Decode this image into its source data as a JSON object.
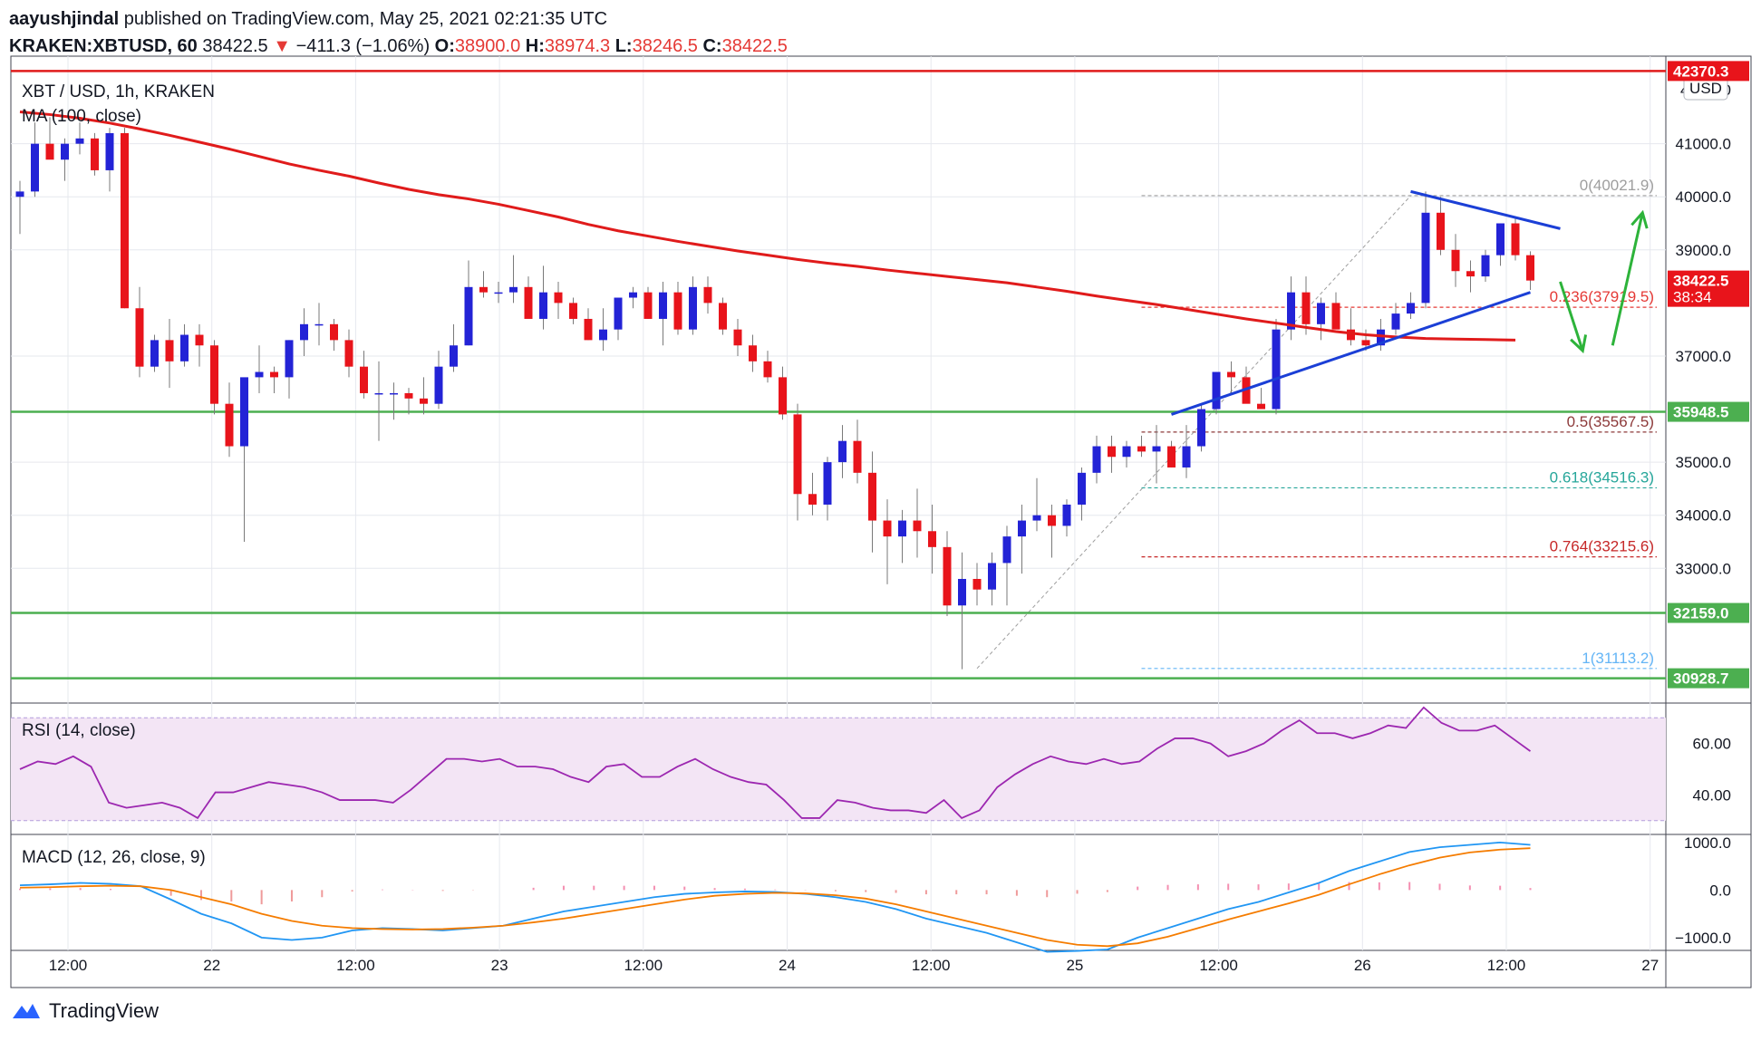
{
  "header": {
    "author": "aayushjindal",
    "published_text": "published on TradingView.com, May 25, 2021 02:21:35 UTC",
    "symbol": "KRAKEN:XBTUSD, 60",
    "last": "38422.5",
    "change_arrow": "▼",
    "change": "−411.3 (−1.06%)",
    "o_label": "O:",
    "o": "38900.0",
    "h_label": "H:",
    "h": "38974.3",
    "l_label": "L:",
    "l": "38246.5",
    "c_label": "C:",
    "c": "38422.5"
  },
  "footer": {
    "brand": "TradingView"
  },
  "colors": {
    "up": "#2323d6",
    "down": "#e8141b",
    "ma": "#e01b1b",
    "support": "#4caf50",
    "trend": "#1b3fd6",
    "arrow": "#2db33a",
    "rsi": "#9c27b0",
    "macd": "#2196f3",
    "signal": "#f57c00"
  },
  "chart_data": [
    {
      "type": "candlestick",
      "title": "XBT / USD, 1h, KRAKEN",
      "currency": "USD",
      "ylim": [
        30700,
        42650
      ],
      "x_ticks": [
        "12:00",
        "22",
        "12:00",
        "23",
        "12:00",
        "24",
        "12:00",
        "25",
        "12:00",
        "26",
        "12:00",
        "27"
      ],
      "y_ticks": [
        "41000.0",
        "40000.0",
        "39000.0",
        "37000.0",
        "35000.0",
        "34000.0",
        "33000.0"
      ],
      "y_tick_values": [
        41000,
        40000,
        39000,
        37000,
        35000,
        34000,
        33000
      ],
      "y_axis_partial": [
        "4",
        "0"
      ],
      "price_labels": [
        {
          "text": "42370.3",
          "value": 42370.3,
          "style": "red"
        },
        {
          "text": "38422.5",
          "sub": "38:34",
          "value": 38422.5,
          "style": "red"
        },
        {
          "text": "35948.5",
          "value": 35948.5,
          "style": "green"
        },
        {
          "text": "32159.0",
          "value": 32159.0,
          "style": "green"
        },
        {
          "text": "30928.7",
          "value": 30928.7,
          "style": "green"
        }
      ],
      "horizontal_lines": [
        {
          "value": 42370.3,
          "color": "red"
        },
        {
          "value": 35948.5,
          "color": "green"
        },
        {
          "value": 32159.0,
          "color": "green"
        },
        {
          "value": 30928.7,
          "color": "green"
        }
      ],
      "fib_levels": [
        {
          "label": "0(40021.9)",
          "value": 40021.9,
          "color": "#9e9e9e"
        },
        {
          "label": "0.236(37919.5)",
          "value": 37919.5,
          "color": "#e53935"
        },
        {
          "label": "0.5(35567.5)",
          "value": 35567.5,
          "color": "#8d3a3a"
        },
        {
          "label": "0.618(34516.3)",
          "value": 34516.3,
          "color": "#26a69a"
        },
        {
          "label": "0.764(33215.6)",
          "value": 33215.6,
          "color": "#c62828"
        },
        {
          "label": "1(31113.2)",
          "value": 31113.2,
          "color": "#64b5f6"
        }
      ],
      "indicator_label": "MA (100, close)",
      "candles_ohlc": [
        [
          40000,
          40300,
          39300,
          40100
        ],
        [
          40100,
          41400,
          40000,
          41000
        ],
        [
          41000,
          41500,
          40800,
          40700
        ],
        [
          40700,
          41100,
          40300,
          41000
        ],
        [
          41000,
          41400,
          40800,
          41100
        ],
        [
          41100,
          41200,
          40400,
          40500
        ],
        [
          40500,
          41300,
          40100,
          41200
        ],
        [
          41200,
          41300,
          37900,
          37900
        ],
        [
          37900,
          38300,
          36600,
          36800
        ],
        [
          36800,
          37400,
          36700,
          37300
        ],
        [
          37300,
          37700,
          36400,
          36900
        ],
        [
          36900,
          37600,
          36800,
          37400
        ],
        [
          37400,
          37600,
          36800,
          37200
        ],
        [
          37200,
          37300,
          35900,
          36100
        ],
        [
          36100,
          36500,
          35100,
          35300
        ],
        [
          35300,
          36400,
          33500,
          36600
        ],
        [
          36600,
          37200,
          36300,
          36700
        ],
        [
          36700,
          36800,
          36300,
          36600
        ],
        [
          36600,
          37300,
          36200,
          37300
        ],
        [
          37300,
          37900,
          37000,
          37600
        ],
        [
          37600,
          38000,
          37200,
          37600
        ],
        [
          37600,
          37700,
          37100,
          37300
        ],
        [
          37300,
          37500,
          36600,
          36800
        ],
        [
          36800,
          37100,
          36200,
          36300
        ],
        [
          36300,
          36900,
          35400,
          36300
        ],
        [
          36300,
          36500,
          35800,
          36300
        ],
        [
          36300,
          36400,
          35900,
          36200
        ],
        [
          36200,
          36600,
          35900,
          36100
        ],
        [
          36100,
          37100,
          36000,
          36800
        ],
        [
          36800,
          37600,
          36700,
          37200
        ],
        [
          37200,
          38800,
          37200,
          38300
        ],
        [
          38300,
          38600,
          38100,
          38200
        ],
        [
          38200,
          38400,
          38000,
          38200
        ],
        [
          38200,
          38900,
          38000,
          38300
        ],
        [
          38300,
          38500,
          37800,
          37700
        ],
        [
          37700,
          38700,
          37500,
          38200
        ],
        [
          38200,
          38400,
          37700,
          38000
        ],
        [
          38000,
          38100,
          37600,
          37700
        ],
        [
          37700,
          37900,
          37300,
          37300
        ],
        [
          37300,
          37900,
          37100,
          37500
        ],
        [
          37500,
          38100,
          37300,
          38100
        ],
        [
          38100,
          38300,
          37900,
          38200
        ],
        [
          38200,
          38300,
          37700,
          37700
        ],
        [
          37700,
          38400,
          37200,
          38200
        ],
        [
          38200,
          38400,
          37400,
          37500
        ],
        [
          37500,
          38500,
          37400,
          38300
        ],
        [
          38300,
          38500,
          37800,
          38000
        ],
        [
          38000,
          38100,
          37400,
          37500
        ],
        [
          37500,
          37700,
          37000,
          37200
        ],
        [
          37200,
          37400,
          36700,
          36900
        ],
        [
          36900,
          37100,
          36500,
          36600
        ],
        [
          36600,
          36800,
          35800,
          35900
        ],
        [
          35900,
          36100,
          33900,
          34400
        ],
        [
          34400,
          34800,
          34000,
          34200
        ],
        [
          34200,
          35100,
          33900,
          35000
        ],
        [
          35000,
          35700,
          34700,
          35400
        ],
        [
          35400,
          35800,
          34600,
          34800
        ],
        [
          34800,
          35200,
          33300,
          33900
        ],
        [
          33900,
          34300,
          32700,
          33600
        ],
        [
          33600,
          34100,
          33100,
          33900
        ],
        [
          33900,
          34500,
          33200,
          33700
        ],
        [
          33700,
          34200,
          32900,
          33400
        ],
        [
          33400,
          33700,
          32100,
          32300
        ],
        [
          32300,
          33300,
          31100,
          32800
        ],
        [
          32800,
          33100,
          32300,
          32600
        ],
        [
          32600,
          33300,
          32300,
          33100
        ],
        [
          33100,
          33800,
          32300,
          33600
        ],
        [
          33600,
          34200,
          32900,
          33900
        ],
        [
          33900,
          34700,
          33700,
          34000
        ],
        [
          34000,
          34200,
          33200,
          33800
        ],
        [
          33800,
          34300,
          33600,
          34200
        ],
        [
          34200,
          34900,
          33900,
          34800
        ],
        [
          34800,
          35500,
          34600,
          35300
        ],
        [
          35300,
          35500,
          34800,
          35100
        ],
        [
          35100,
          35400,
          34900,
          35300
        ],
        [
          35300,
          35500,
          35100,
          35200
        ],
        [
          35200,
          35700,
          34600,
          35300
        ],
        [
          35300,
          35400,
          34900,
          34900
        ],
        [
          34900,
          35700,
          34700,
          35300
        ],
        [
          35300,
          36100,
          35200,
          36000
        ],
        [
          36000,
          36700,
          35900,
          36700
        ],
        [
          36700,
          36900,
          36300,
          36600
        ],
        [
          36600,
          36800,
          36200,
          36100
        ],
        [
          36100,
          36400,
          36000,
          36000
        ],
        [
          36000,
          37700,
          35900,
          37500
        ],
        [
          37500,
          38500,
          37300,
          38200
        ],
        [
          38200,
          38500,
          37400,
          37600
        ],
        [
          37600,
          38100,
          37300,
          38000
        ],
        [
          38000,
          38200,
          37600,
          37500
        ],
        [
          37500,
          37900,
          37200,
          37300
        ],
        [
          37300,
          37500,
          37100,
          37200
        ],
        [
          37200,
          37700,
          37100,
          37500
        ],
        [
          37500,
          38000,
          37400,
          37800
        ],
        [
          37800,
          38200,
          37700,
          38000
        ],
        [
          38000,
          40100,
          37900,
          39700
        ],
        [
          39700,
          40000,
          38900,
          39000
        ],
        [
          39000,
          39300,
          38300,
          38600
        ],
        [
          38600,
          38800,
          38200,
          38500
        ],
        [
          38500,
          39000,
          38400,
          38900
        ],
        [
          38900,
          39500,
          38700,
          39500
        ],
        [
          39500,
          39600,
          38800,
          38900
        ],
        [
          38900,
          38974,
          38246,
          38422.5
        ]
      ],
      "ma100": [
        41600,
        41550,
        41480,
        41390,
        41280,
        41160,
        41030,
        40900,
        40760,
        40620,
        40500,
        40390,
        40260,
        40140,
        40040,
        39960,
        39860,
        39740,
        39620,
        39480,
        39360,
        39260,
        39160,
        39070,
        38980,
        38900,
        38820,
        38750,
        38690,
        38620,
        38560,
        38500,
        38440,
        38380,
        38300,
        38220,
        38130,
        38050,
        37970,
        37880,
        37790,
        37700,
        37620,
        37540,
        37460,
        37400,
        37360,
        37330,
        37320,
        37310,
        37300
      ],
      "trendlines": [
        {
          "from": [
            77,
            35900
          ],
          "to": [
            101,
            38200
          ],
          "color": "trend"
        },
        {
          "from": [
            93,
            40100
          ],
          "to": [
            103,
            39400
          ],
          "color": "trend"
        }
      ],
      "arrows": [
        {
          "from": [
            103,
            38400
          ],
          "to": [
            104.5,
            37100
          ],
          "color": "arrow"
        },
        {
          "from": [
            106.5,
            37200
          ],
          "to": [
            108.5,
            39700
          ],
          "color": "arrow"
        }
      ]
    },
    {
      "type": "line",
      "title": "RSI (14, close)",
      "ylim": [
        25,
        75
      ],
      "y_ticks": [
        "60.00",
        "40.00"
      ],
      "y_tick_values": [
        60,
        40
      ],
      "band": [
        30,
        70
      ],
      "values": [
        50,
        53,
        52,
        55,
        51,
        37,
        35,
        36,
        37,
        35,
        31,
        41,
        41,
        43,
        45,
        44,
        43,
        41,
        38,
        38,
        38,
        37,
        42,
        48,
        54,
        54,
        53,
        54,
        51,
        51,
        50,
        47,
        45,
        51,
        52,
        47,
        47,
        51,
        54,
        50,
        47,
        45,
        44,
        38,
        31,
        31,
        38,
        37,
        35,
        34,
        34,
        33,
        38,
        31,
        34,
        43,
        48,
        52,
        55,
        53,
        52,
        54,
        52,
        53,
        58,
        62,
        62,
        60,
        55,
        57,
        60,
        65,
        69,
        64,
        64,
        62,
        64,
        67,
        66,
        74,
        68,
        65,
        65,
        67,
        62,
        57
      ]
    },
    {
      "type": "line",
      "title": "MACD (12, 26, close, 9)",
      "ylim": [
        -1250,
        1150
      ],
      "y_ticks": [
        "1000.0",
        "0.0",
        "−1000.0"
      ],
      "y_tick_values": [
        1000,
        0,
        -1000
      ],
      "series": [
        {
          "key": "macd",
          "values": [
            100,
            120,
            150,
            130,
            80,
            -200,
            -500,
            -700,
            -1000,
            -1050,
            -1000,
            -850,
            -800,
            -820,
            -850,
            -800,
            -750,
            -600,
            -450,
            -350,
            -250,
            -150,
            -80,
            -50,
            -30,
            -40,
            -80,
            -150,
            -250,
            -400,
            -600,
            -750,
            -900,
            -1100,
            -1300,
            -1280,
            -1250,
            -1000,
            -800,
            -600,
            -400,
            -250,
            -50,
            150,
            400,
            600,
            800,
            900,
            950,
            1000,
            950
          ]
        },
        {
          "key": "signal",
          "values": [
            50,
            60,
            80,
            90,
            80,
            0,
            -150,
            -300,
            -500,
            -650,
            -750,
            -800,
            -820,
            -830,
            -820,
            -790,
            -750,
            -680,
            -600,
            -500,
            -400,
            -300,
            -200,
            -120,
            -80,
            -60,
            -70,
            -110,
            -180,
            -300,
            -450,
            -600,
            -750,
            -900,
            -1050,
            -1150,
            -1180,
            -1120,
            -980,
            -800,
            -620,
            -450,
            -280,
            -100,
            120,
            330,
            520,
            680,
            790,
            850,
            880
          ]
        }
      ],
      "histogram": [
        50,
        60,
        70,
        40,
        0,
        -200,
        -350,
        -400,
        -500,
        -400,
        -250,
        -50,
        20,
        10,
        -30,
        -10,
        0,
        80,
        150,
        150,
        150,
        150,
        120,
        70,
        50,
        20,
        -10,
        -40,
        -70,
        -100,
        -150,
        -150,
        -150,
        -200,
        -250,
        -130,
        -70,
        120,
        180,
        200,
        220,
        200,
        230,
        250,
        280,
        270,
        280,
        220,
        160,
        150,
        70
      ]
    }
  ]
}
